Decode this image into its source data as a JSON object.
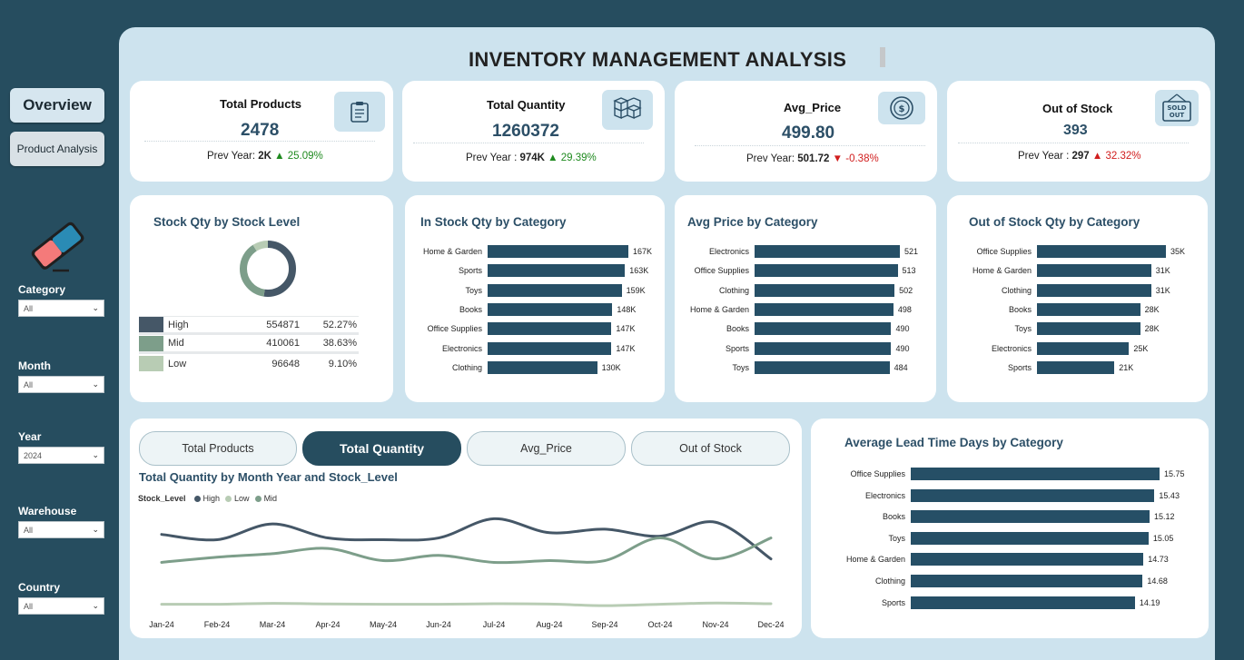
{
  "title": "INVENTORY MANAGEMENT ANALYSIS",
  "nav": {
    "overview": "Overview",
    "product_analysis": "Product Analysis"
  },
  "filters": [
    {
      "label": "Category",
      "value": "All"
    },
    {
      "label": "Month",
      "value": "All"
    },
    {
      "label": "Year",
      "value": "2024"
    },
    {
      "label": "Warehouse",
      "value": "All"
    },
    {
      "label": "Country",
      "value": "All"
    }
  ],
  "kpis": [
    {
      "title": "Total Products",
      "value": "2478",
      "prev_label": "Prev Year: ",
      "prev_value": "2K",
      "arrow": "▲",
      "change": "25.09%",
      "icon": "clipboard-icon"
    },
    {
      "title": "Total Quantity",
      "value": "1260372",
      "prev_label": "Prev Year : ",
      "prev_value": "974K",
      "arrow": "▲",
      "change": "29.39%",
      "icon": "boxes-icon"
    },
    {
      "title": "Avg_Price",
      "value": "499.80",
      "prev_label": "Prev Year: ",
      "prev_value": "501.72",
      "arrow": "▼",
      "change": "-0.38%",
      "icon": "coin-icon"
    },
    {
      "title": "Out of Stock",
      "value": "393",
      "prev_label": "Prev Year : ",
      "prev_value": "297",
      "arrow": "▲",
      "change": "32.32%",
      "icon": "sold-out-icon"
    }
  ],
  "panels": {
    "stock_level": "Stock Qty by Stock Level",
    "in_stock": "In Stock Qty by Category",
    "avg_price": "Avg Price by Category",
    "out_of_stock": "Out of Stock Qty by Category",
    "trend": "Total Quantity by Month Year and Stock_Level",
    "lead_time": "Average Lead Time Days by Category"
  },
  "tabs": [
    "Total Products",
    "Total Quantity",
    "Avg_Price",
    "Out of Stock"
  ],
  "active_tab": 1,
  "colors": {
    "bar": "#264f66",
    "high": "#455767",
    "mid": "#7d9e8a",
    "low": "#b8ccb4",
    "up": "#1f8a1f",
    "down": "#d11e1e"
  },
  "chart_data": [
    {
      "type": "pie",
      "title": "Stock Qty by Stock Level",
      "categories": [
        "High",
        "Mid",
        "Low"
      ],
      "values": [
        554871,
        410061,
        96648
      ],
      "percent_labels": [
        "52.27%",
        "38.63%",
        "9.10%"
      ]
    },
    {
      "type": "bar",
      "title": "In Stock Qty by Category",
      "categories": [
        "Home & Garden",
        "Sports",
        "Toys",
        "Books",
        "Office Supplies",
        "Electronics",
        "Clothing"
      ],
      "values": [
        167000,
        163000,
        159000,
        148000,
        147000,
        147000,
        130000
      ],
      "labels": [
        "167K",
        "163K",
        "159K",
        "148K",
        "147K",
        "147K",
        "130K"
      ]
    },
    {
      "type": "bar",
      "title": "Avg Price by Category",
      "categories": [
        "Electronics",
        "Office Supplies",
        "Clothing",
        "Home & Garden",
        "Books",
        "Sports",
        "Toys"
      ],
      "values": [
        521,
        513,
        502,
        498,
        490,
        490,
        484
      ],
      "labels": [
        "521",
        "513",
        "502",
        "498",
        "490",
        "490",
        "484"
      ]
    },
    {
      "type": "bar",
      "title": "Out of Stock Qty by Category",
      "categories": [
        "Office Supplies",
        "Home & Garden",
        "Clothing",
        "Books",
        "Toys",
        "Electronics",
        "Sports"
      ],
      "values": [
        35000,
        31000,
        31000,
        28000,
        28000,
        25000,
        21000
      ],
      "labels": [
        "35K",
        "31K",
        "31K",
        "28K",
        "28K",
        "25K",
        "21K"
      ]
    },
    {
      "type": "line",
      "title": "Total Quantity by Month Year and Stock_Level",
      "legend_title": "Stock_Level",
      "x": [
        "Jan-24",
        "Feb-24",
        "Mar-24",
        "Apr-24",
        "May-24",
        "Jun-24",
        "Jul-24",
        "Aug-24",
        "Sep-24",
        "Oct-24",
        "Nov-24",
        "Dec-24"
      ],
      "series": [
        {
          "name": "High",
          "values": [
            48000,
            45000,
            54000,
            46000,
            45000,
            46000,
            57000,
            49000,
            51000,
            47000,
            55000,
            34000
          ]
        },
        {
          "name": "Low",
          "values": [
            8000,
            8000,
            8500,
            8200,
            8000,
            8000,
            8300,
            8100,
            7200,
            8000,
            8700,
            8300
          ]
        },
        {
          "name": "Mid",
          "values": [
            32000,
            35000,
            37000,
            40000,
            33000,
            36000,
            32000,
            33000,
            33000,
            46000,
            34000,
            46000
          ]
        }
      ],
      "ylim": [
        0,
        65000
      ]
    },
    {
      "type": "bar",
      "title": "Average Lead Time Days by Category",
      "categories": [
        "Office Supplies",
        "Electronics",
        "Books",
        "Toys",
        "Home & Garden",
        "Clothing",
        "Sports"
      ],
      "values": [
        15.75,
        15.43,
        15.12,
        15.05,
        14.73,
        14.68,
        14.19
      ],
      "labels": [
        "15.75",
        "15.43",
        "15.12",
        "15.05",
        "14.73",
        "14.68",
        "14.19"
      ]
    }
  ]
}
